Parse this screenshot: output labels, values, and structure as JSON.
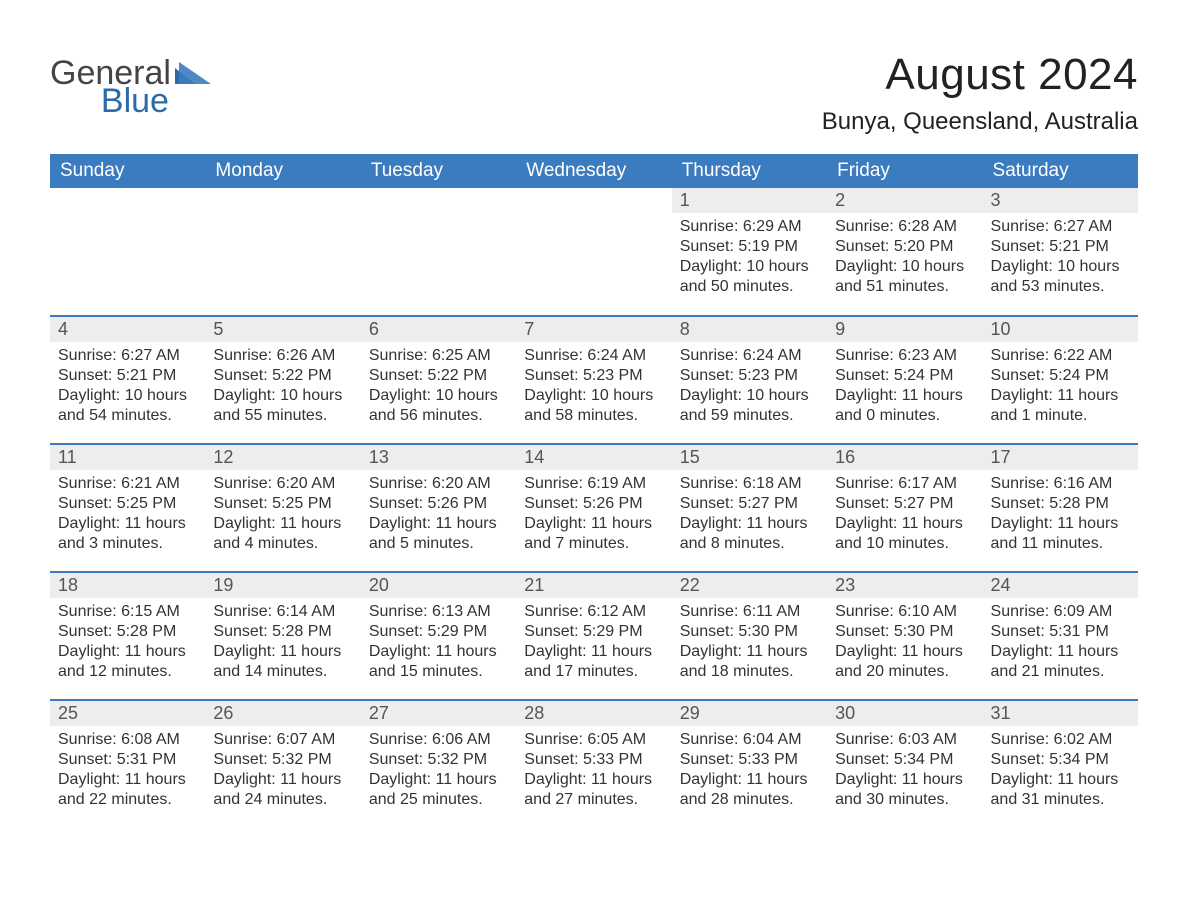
{
  "logo": {
    "word1": "General",
    "word2": "Blue"
  },
  "header": {
    "month_title": "August 2024",
    "location": "Bunya, Queensland, Australia"
  },
  "style": {
    "header_blue": "#3b7bbf",
    "daynum_bg": "#ededed",
    "text_color": "#333333",
    "logo_blue": "#2d6aa8",
    "background": "#ffffff"
  },
  "calendar": {
    "day_headers": [
      "Sunday",
      "Monday",
      "Tuesday",
      "Wednesday",
      "Thursday",
      "Friday",
      "Saturday"
    ],
    "weeks": [
      [
        null,
        null,
        null,
        null,
        {
          "n": "1",
          "sunrise": "6:29 AM",
          "sunset": "5:19 PM",
          "daylight": "10 hours and 50 minutes."
        },
        {
          "n": "2",
          "sunrise": "6:28 AM",
          "sunset": "5:20 PM",
          "daylight": "10 hours and 51 minutes."
        },
        {
          "n": "3",
          "sunrise": "6:27 AM",
          "sunset": "5:21 PM",
          "daylight": "10 hours and 53 minutes."
        }
      ],
      [
        {
          "n": "4",
          "sunrise": "6:27 AM",
          "sunset": "5:21 PM",
          "daylight": "10 hours and 54 minutes."
        },
        {
          "n": "5",
          "sunrise": "6:26 AM",
          "sunset": "5:22 PM",
          "daylight": "10 hours and 55 minutes."
        },
        {
          "n": "6",
          "sunrise": "6:25 AM",
          "sunset": "5:22 PM",
          "daylight": "10 hours and 56 minutes."
        },
        {
          "n": "7",
          "sunrise": "6:24 AM",
          "sunset": "5:23 PM",
          "daylight": "10 hours and 58 minutes."
        },
        {
          "n": "8",
          "sunrise": "6:24 AM",
          "sunset": "5:23 PM",
          "daylight": "10 hours and 59 minutes."
        },
        {
          "n": "9",
          "sunrise": "6:23 AM",
          "sunset": "5:24 PM",
          "daylight": "11 hours and 0 minutes."
        },
        {
          "n": "10",
          "sunrise": "6:22 AM",
          "sunset": "5:24 PM",
          "daylight": "11 hours and 1 minute."
        }
      ],
      [
        {
          "n": "11",
          "sunrise": "6:21 AM",
          "sunset": "5:25 PM",
          "daylight": "11 hours and 3 minutes."
        },
        {
          "n": "12",
          "sunrise": "6:20 AM",
          "sunset": "5:25 PM",
          "daylight": "11 hours and 4 minutes."
        },
        {
          "n": "13",
          "sunrise": "6:20 AM",
          "sunset": "5:26 PM",
          "daylight": "11 hours and 5 minutes."
        },
        {
          "n": "14",
          "sunrise": "6:19 AM",
          "sunset": "5:26 PM",
          "daylight": "11 hours and 7 minutes."
        },
        {
          "n": "15",
          "sunrise": "6:18 AM",
          "sunset": "5:27 PM",
          "daylight": "11 hours and 8 minutes."
        },
        {
          "n": "16",
          "sunrise": "6:17 AM",
          "sunset": "5:27 PM",
          "daylight": "11 hours and 10 minutes."
        },
        {
          "n": "17",
          "sunrise": "6:16 AM",
          "sunset": "5:28 PM",
          "daylight": "11 hours and 11 minutes."
        }
      ],
      [
        {
          "n": "18",
          "sunrise": "6:15 AM",
          "sunset": "5:28 PM",
          "daylight": "11 hours and 12 minutes."
        },
        {
          "n": "19",
          "sunrise": "6:14 AM",
          "sunset": "5:28 PM",
          "daylight": "11 hours and 14 minutes."
        },
        {
          "n": "20",
          "sunrise": "6:13 AM",
          "sunset": "5:29 PM",
          "daylight": "11 hours and 15 minutes."
        },
        {
          "n": "21",
          "sunrise": "6:12 AM",
          "sunset": "5:29 PM",
          "daylight": "11 hours and 17 minutes."
        },
        {
          "n": "22",
          "sunrise": "6:11 AM",
          "sunset": "5:30 PM",
          "daylight": "11 hours and 18 minutes."
        },
        {
          "n": "23",
          "sunrise": "6:10 AM",
          "sunset": "5:30 PM",
          "daylight": "11 hours and 20 minutes."
        },
        {
          "n": "24",
          "sunrise": "6:09 AM",
          "sunset": "5:31 PM",
          "daylight": "11 hours and 21 minutes."
        }
      ],
      [
        {
          "n": "25",
          "sunrise": "6:08 AM",
          "sunset": "5:31 PM",
          "daylight": "11 hours and 22 minutes."
        },
        {
          "n": "26",
          "sunrise": "6:07 AM",
          "sunset": "5:32 PM",
          "daylight": "11 hours and 24 minutes."
        },
        {
          "n": "27",
          "sunrise": "6:06 AM",
          "sunset": "5:32 PM",
          "daylight": "11 hours and 25 minutes."
        },
        {
          "n": "28",
          "sunrise": "6:05 AM",
          "sunset": "5:33 PM",
          "daylight": "11 hours and 27 minutes."
        },
        {
          "n": "29",
          "sunrise": "6:04 AM",
          "sunset": "5:33 PM",
          "daylight": "11 hours and 28 minutes."
        },
        {
          "n": "30",
          "sunrise": "6:03 AM",
          "sunset": "5:34 PM",
          "daylight": "11 hours and 30 minutes."
        },
        {
          "n": "31",
          "sunrise": "6:02 AM",
          "sunset": "5:34 PM",
          "daylight": "11 hours and 31 minutes."
        }
      ]
    ],
    "labels": {
      "sunrise": "Sunrise:",
      "sunset": "Sunset:",
      "daylight": "Daylight:"
    }
  }
}
